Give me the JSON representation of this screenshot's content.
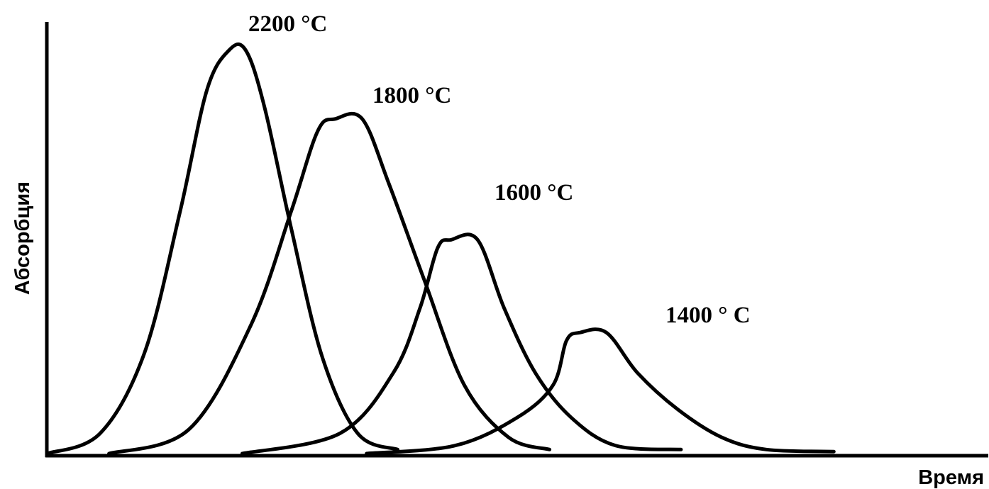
{
  "chart_data": {
    "type": "line",
    "xlabel": "Время",
    "ylabel": "Абсорбция",
    "xlim": [
      0,
      100
    ],
    "ylim": [
      0,
      100
    ],
    "grid": false,
    "legend": "none",
    "line_color": "#000000",
    "series": [
      {
        "label": "2200  °C",
        "x": [
          0,
          6,
          11,
          15,
          18,
          20.5,
          22.4,
          24.5,
          27.5,
          31,
          35,
          39.5
        ],
        "y": [
          0,
          5,
          25,
          60,
          90,
          100,
          100,
          86,
          56,
          24,
          5,
          1
        ]
      },
      {
        "label": "1800  °C",
        "x": [
          7,
          16,
          23,
          27.5,
          30.5,
          32.5,
          35.5,
          38.5,
          42.5,
          47,
          52,
          56.6
        ],
        "y": [
          0,
          6,
          32,
          60,
          80,
          83,
          83,
          67,
          43,
          17,
          4,
          1
        ]
      },
      {
        "label": "1600  °C",
        "x": [
          22,
          33,
          39,
          42,
          44,
          45.5,
          48.5,
          51.5,
          55,
          59,
          64,
          71.4
        ],
        "y": [
          0,
          5,
          20,
          36,
          51,
          53,
          53,
          36,
          20,
          9,
          2,
          1
        ]
      },
      {
        "label": "1400 ° C",
        "x": [
          36,
          46,
          53,
          57,
          58.5,
          60,
          63,
          66.5,
          71,
          76,
          81,
          88.6
        ],
        "y": [
          0,
          2,
          9,
          17,
          28,
          30,
          30,
          20,
          11,
          4,
          1,
          0.5
        ]
      }
    ]
  }
}
